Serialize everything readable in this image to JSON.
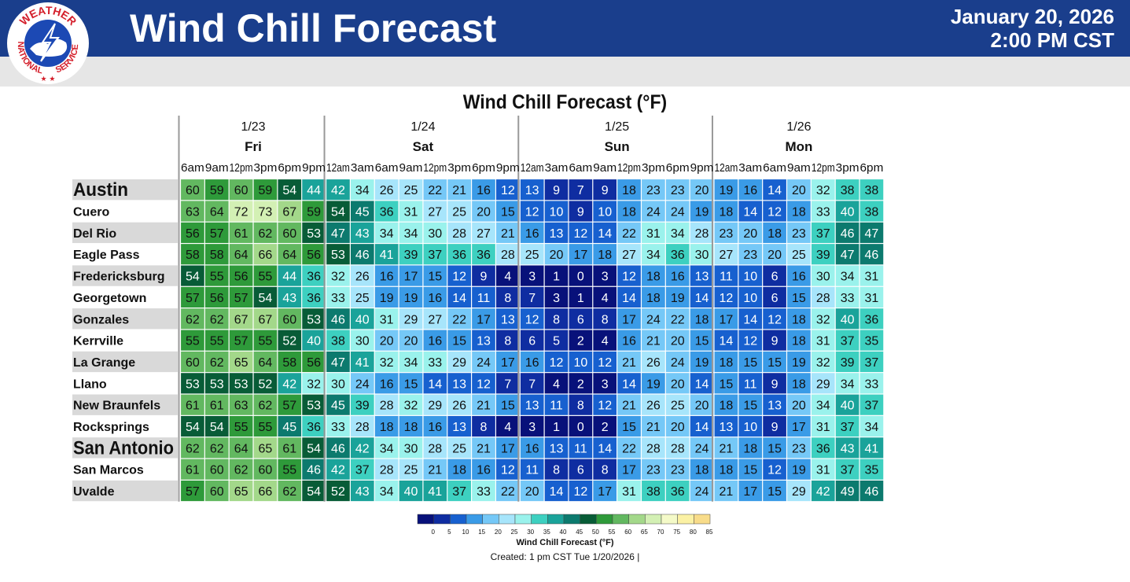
{
  "header": {
    "title": "Wind Chill Forecast",
    "date": "January 20, 2026",
    "time": "2:00 PM CST",
    "agency_top": "WEATHER",
    "agency_left": "NATIONAL",
    "agency_right": "SERVICE",
    "brand_color": "#1a3e8c"
  },
  "chart_data": {
    "type": "heatmap",
    "title": "Wind Chill Forecast (°F)",
    "days": [
      {
        "date": "1/23",
        "day": "Fri",
        "span": 6
      },
      {
        "date": "1/24",
        "day": "Sat",
        "span": 8
      },
      {
        "date": "1/25",
        "day": "Sun",
        "span": 8
      },
      {
        "date": "1/26",
        "day": "Mon",
        "span": 7
      }
    ],
    "times": [
      "6am",
      "9am",
      "12pm",
      "3pm",
      "6pm",
      "9pm",
      "12am",
      "3am",
      "6am",
      "9am",
      "12pm",
      "3pm",
      "6pm",
      "9pm",
      "12am",
      "3am",
      "6am",
      "9am",
      "12pm",
      "3pm",
      "6pm",
      "9pm",
      "12am",
      "3am",
      "6am",
      "9am",
      "12pm",
      "3pm",
      "6pm"
    ],
    "locations": [
      "Austin",
      "Cuero",
      "Del Rio",
      "Eagle Pass",
      "Fredericksburg",
      "Georgetown",
      "Gonzales",
      "Kerrville",
      "La Grange",
      "Llano",
      "New Braunfels",
      "Rocksprings",
      "San Antonio",
      "San Marcos",
      "Uvalde"
    ],
    "major_locations": [
      "Austin",
      "San Antonio"
    ],
    "values": [
      [
        60,
        59,
        60,
        59,
        54,
        44,
        42,
        34,
        26,
        25,
        22,
        21,
        16,
        12,
        13,
        9,
        7,
        9,
        18,
        23,
        23,
        20,
        19,
        16,
        14,
        20,
        32,
        38,
        38
      ],
      [
        63,
        64,
        72,
        73,
        67,
        59,
        54,
        45,
        36,
        31,
        27,
        25,
        20,
        15,
        12,
        10,
        9,
        10,
        18,
        24,
        24,
        19,
        18,
        14,
        12,
        18,
        33,
        40,
        38
      ],
      [
        56,
        57,
        61,
        62,
        60,
        53,
        47,
        43,
        34,
        34,
        30,
        28,
        27,
        21,
        16,
        13,
        12,
        14,
        22,
        31,
        34,
        28,
        23,
        20,
        18,
        23,
        37,
        46,
        47
      ],
      [
        58,
        58,
        64,
        66,
        64,
        56,
        53,
        46,
        41,
        39,
        37,
        36,
        36,
        28,
        25,
        20,
        17,
        18,
        27,
        34,
        36,
        30,
        27,
        23,
        20,
        25,
        39,
        47,
        46
      ],
      [
        54,
        55,
        56,
        55,
        44,
        36,
        32,
        26,
        16,
        17,
        15,
        12,
        9,
        4,
        3,
        1,
        0,
        3,
        12,
        18,
        16,
        13,
        11,
        10,
        6,
        16,
        30,
        34,
        31
      ],
      [
        57,
        56,
        57,
        54,
        43,
        36,
        33,
        25,
        19,
        19,
        16,
        14,
        11,
        8,
        7,
        3,
        1,
        4,
        14,
        18,
        19,
        14,
        12,
        10,
        6,
        15,
        28,
        33,
        31
      ],
      [
        62,
        62,
        67,
        67,
        60,
        53,
        46,
        40,
        31,
        29,
        27,
        22,
        17,
        13,
        12,
        8,
        6,
        8,
        17,
        24,
        22,
        18,
        17,
        14,
        12,
        18,
        32,
        40,
        36
      ],
      [
        55,
        55,
        57,
        55,
        52,
        40,
        38,
        30,
        20,
        20,
        16,
        15,
        13,
        8,
        6,
        5,
        2,
        4,
        16,
        21,
        20,
        15,
        14,
        12,
        9,
        18,
        31,
        37,
        35
      ],
      [
        60,
        62,
        65,
        64,
        58,
        56,
        47,
        41,
        32,
        34,
        33,
        29,
        24,
        17,
        16,
        12,
        10,
        12,
        21,
        26,
        24,
        19,
        18,
        15,
        15,
        19,
        32,
        39,
        37
      ],
      [
        53,
        53,
        53,
        52,
        42,
        32,
        30,
        24,
        16,
        15,
        14,
        13,
        12,
        7,
        7,
        4,
        2,
        3,
        14,
        19,
        20,
        14,
        15,
        11,
        9,
        18,
        29,
        34,
        33
      ],
      [
        61,
        61,
        63,
        62,
        57,
        53,
        45,
        39,
        28,
        32,
        29,
        26,
        21,
        15,
        13,
        11,
        8,
        12,
        21,
        26,
        25,
        20,
        18,
        15,
        13,
        20,
        34,
        40,
        37
      ],
      [
        54,
        54,
        55,
        55,
        45,
        36,
        33,
        28,
        18,
        18,
        16,
        13,
        8,
        4,
        3,
        1,
        0,
        2,
        15,
        21,
        20,
        14,
        13,
        10,
        9,
        17,
        31,
        37,
        34
      ],
      [
        62,
        62,
        64,
        65,
        61,
        54,
        46,
        42,
        34,
        30,
        28,
        25,
        21,
        17,
        16,
        13,
        11,
        14,
        22,
        28,
        28,
        24,
        21,
        18,
        15,
        23,
        36,
        43,
        41
      ],
      [
        61,
        60,
        62,
        60,
        55,
        46,
        42,
        37,
        28,
        25,
        21,
        18,
        16,
        12,
        11,
        8,
        6,
        8,
        17,
        23,
        23,
        18,
        18,
        15,
        12,
        19,
        31,
        37,
        35
      ],
      [
        57,
        60,
        65,
        66,
        62,
        54,
        52,
        43,
        34,
        40,
        41,
        37,
        33,
        22,
        20,
        14,
        12,
        17,
        31,
        38,
        36,
        24,
        21,
        17,
        15,
        29,
        42,
        49,
        46
      ]
    ],
    "legend": {
      "title": "Wind Chill Forecast (°F)",
      "ticks": [
        0,
        5,
        10,
        15,
        20,
        25,
        30,
        35,
        40,
        45,
        50,
        55,
        60,
        65,
        70,
        75,
        80,
        85
      ]
    }
  },
  "footer": {
    "legend_caption": "Wind Chill Forecast (°F)",
    "created": "Created: 1 pm CST Tue 1/20/2026  |"
  },
  "colors": {
    "0": "#08117a",
    "5": "#0f2da1",
    "10": "#1760cf",
    "15": "#3a9be7",
    "20": "#75c8f7",
    "25": "#a7e5fb",
    "30": "#9af2ec",
    "35": "#3dd0c0",
    "40": "#1aa39a",
    "45": "#0c7a6e",
    "50": "#085c37",
    "55": "#2e9a3a",
    "60": "#62b860",
    "65": "#a3d88a",
    "70": "#d3f0b4",
    "75": "#f4fac8",
    "80": "#fbf1a4",
    "85": "#f8dc8a"
  }
}
